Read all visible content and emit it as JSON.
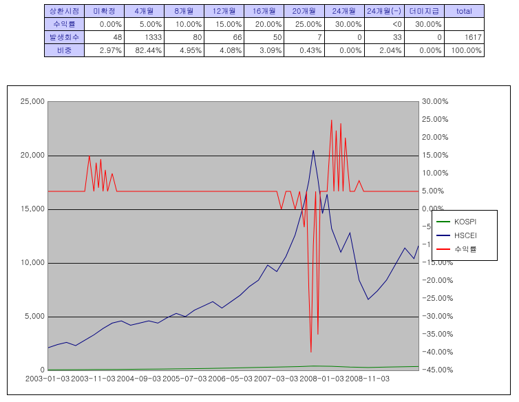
{
  "table": {
    "columns": [
      "상환시점",
      "미확정",
      "4개월",
      "8개월",
      "12개월",
      "16개월",
      "20개월",
      "24개월",
      "24개월(-)",
      "더미지급",
      "total"
    ],
    "rows": [
      {
        "head": "수익률",
        "cells": [
          "0.00%",
          "5.00%",
          "10.00%",
          "15.00%",
          "20.00%",
          "25.00%",
          "30.00%",
          "<0",
          "30.00%",
          ""
        ]
      },
      {
        "head": "발생회수",
        "cells": [
          "48",
          "1333",
          "80",
          "66",
          "50",
          "7",
          "0",
          "33",
          "0",
          "1617"
        ]
      },
      {
        "head": "비중",
        "cells": [
          "2.97%",
          "82.44%",
          "4.95%",
          "4.08%",
          "3.09%",
          "0.43%",
          "0.00%",
          "2.04%",
          "0.00%",
          "100.00%"
        ]
      }
    ],
    "header_bg": "#ccccff",
    "header_fg": "#000080",
    "border_color": "#000000"
  },
  "chart": {
    "type": "line",
    "background_color": "#c0c0c0",
    "outer_border": "#000000",
    "grid_color": "#000000",
    "left_axis": {
      "min": 0,
      "max": 25000,
      "step": 5000,
      "format": "comma"
    },
    "right_axis": {
      "min": -45,
      "max": 30,
      "step": 5,
      "suffix": "%",
      "format": "pct2"
    },
    "x_ticks": [
      "2003-01-03",
      "2003-11-03",
      "2004-09-03",
      "2005-07-03",
      "2006-05-03",
      "2007-03-03",
      "2008-01-03",
      "2008-11-03"
    ],
    "x_domain": {
      "count": 82
    },
    "legend": {
      "border": "#000000",
      "bg": "#ffffff",
      "items": [
        {
          "label": "KOSPI",
          "color": "#008000"
        },
        {
          "label": "HSCEI",
          "color": "#000080"
        },
        {
          "label": "수익률",
          "color": "#ff0000"
        }
      ]
    },
    "series": [
      {
        "name": "KOSPI",
        "color": "#008000",
        "axis": "left",
        "line_width": 1,
        "points": [
          [
            0,
            50
          ],
          [
            5,
            60
          ],
          [
            10,
            70
          ],
          [
            15,
            80
          ],
          [
            20,
            100
          ],
          [
            25,
            120
          ],
          [
            30,
            150
          ],
          [
            35,
            180
          ],
          [
            40,
            220
          ],
          [
            45,
            260
          ],
          [
            50,
            300
          ],
          [
            55,
            350
          ],
          [
            58,
            400
          ],
          [
            62,
            380
          ],
          [
            66,
            300
          ],
          [
            70,
            260
          ],
          [
            74,
            300
          ],
          [
            78,
            340
          ],
          [
            81,
            360
          ]
        ]
      },
      {
        "name": "HSCEI",
        "color": "#000080",
        "axis": "left",
        "line_width": 1,
        "points": [
          [
            0,
            2100
          ],
          [
            2,
            2400
          ],
          [
            4,
            2600
          ],
          [
            6,
            2300
          ],
          [
            8,
            2800
          ],
          [
            10,
            3300
          ],
          [
            12,
            3900
          ],
          [
            14,
            4400
          ],
          [
            16,
            4600
          ],
          [
            18,
            4200
          ],
          [
            20,
            4400
          ],
          [
            22,
            4600
          ],
          [
            24,
            4400
          ],
          [
            26,
            4900
          ],
          [
            28,
            5300
          ],
          [
            30,
            5000
          ],
          [
            32,
            5600
          ],
          [
            34,
            6000
          ],
          [
            36,
            6400
          ],
          [
            38,
            5800
          ],
          [
            40,
            6400
          ],
          [
            42,
            7000
          ],
          [
            44,
            7800
          ],
          [
            46,
            8400
          ],
          [
            48,
            9800
          ],
          [
            50,
            9200
          ],
          [
            52,
            10600
          ],
          [
            54,
            12600
          ],
          [
            56,
            15600
          ],
          [
            57,
            17600
          ],
          [
            58,
            20500
          ],
          [
            59,
            17800
          ],
          [
            60,
            14600
          ],
          [
            61,
            16400
          ],
          [
            62,
            13200
          ],
          [
            64,
            11000
          ],
          [
            66,
            12800
          ],
          [
            68,
            8400
          ],
          [
            70,
            6600
          ],
          [
            72,
            7400
          ],
          [
            74,
            8400
          ],
          [
            76,
            9900
          ],
          [
            78,
            11400
          ],
          [
            80,
            10400
          ],
          [
            81,
            11600
          ]
        ]
      },
      {
        "name": "수익률",
        "color": "#ff0000",
        "axis": "right",
        "line_width": 1,
        "points": [
          [
            0,
            5
          ],
          [
            7,
            5
          ],
          [
            8,
            5
          ],
          [
            9,
            15
          ],
          [
            10,
            5
          ],
          [
            10.5,
            13
          ],
          [
            11,
            6
          ],
          [
            11.5,
            14
          ],
          [
            12,
            5
          ],
          [
            12.5,
            11
          ],
          [
            13,
            5
          ],
          [
            14,
            10
          ],
          [
            15,
            5
          ],
          [
            48,
            5
          ],
          [
            49,
            5
          ],
          [
            50,
            5
          ],
          [
            51,
            0
          ],
          [
            52,
            5
          ],
          [
            53,
            5
          ],
          [
            54,
            0
          ],
          [
            55,
            5
          ],
          [
            56,
            -5
          ],
          [
            56.5,
            5
          ],
          [
            57,
            -22
          ],
          [
            57.5,
            -40
          ],
          [
            58,
            -10
          ],
          [
            58.5,
            5
          ],
          [
            59,
            -35
          ],
          [
            59.5,
            5
          ],
          [
            60,
            5
          ],
          [
            61,
            5
          ],
          [
            62,
            25
          ],
          [
            62.5,
            5
          ],
          [
            63,
            22
          ],
          [
            63.5,
            5
          ],
          [
            64,
            24
          ],
          [
            64.5,
            5
          ],
          [
            65,
            20
          ],
          [
            65.5,
            12
          ],
          [
            66,
            5
          ],
          [
            67,
            5
          ],
          [
            68,
            8
          ],
          [
            69,
            5
          ],
          [
            81,
            5
          ]
        ]
      }
    ]
  }
}
